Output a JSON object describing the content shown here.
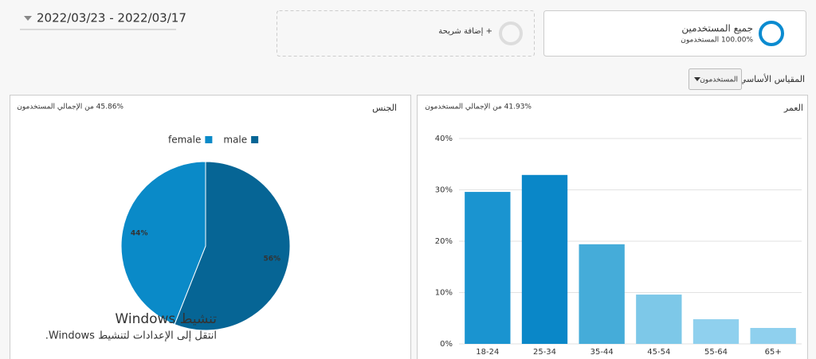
{
  "header": {
    "date_range": "2022/03/23 - 2022/03/17"
  },
  "segments": {
    "add_segment": "+ إضافة شريحة",
    "active": {
      "name": "جميع المستخدمين",
      "detail": "100.00% المستخدمون"
    }
  },
  "metric": {
    "label": "المقياس الأساسي:",
    "selected": "المستخدمون"
  },
  "panels": [
    {
      "title": "الجنس",
      "summary": "45.86% من الإجمالي المستخدمون"
    },
    {
      "title": "العمر",
      "summary": "41.93% من الإجمالي المستخدمون"
    }
  ],
  "watermark": {
    "title": "تنشيط Windows",
    "text": "انتقل إلى الإعدادات لتنشيط Windows."
  },
  "chart_data": [
    {
      "type": "pie",
      "categories": [
        "female",
        "male"
      ],
      "values": [
        44,
        56
      ],
      "value_labels": [
        "44%",
        "56%"
      ],
      "colors": [
        "#0a8ac8",
        "#066595"
      ],
      "legend": "top"
    },
    {
      "type": "bar",
      "categories": [
        "18-24",
        "25-34",
        "35-44",
        "45-54",
        "55-64",
        "65+"
      ],
      "values": [
        29.6,
        32.9,
        19.4,
        9.6,
        4.8,
        3.1
      ],
      "colors": [
        "#1a94d0",
        "#0a87c8",
        "#45acd9",
        "#7dc8e8",
        "#8fd0ee",
        "#8fd0ee"
      ],
      "ylim": [
        0,
        40
      ],
      "yticks": [
        {
          "value": 0,
          "label": "0%"
        },
        {
          "value": 10,
          "label": "10%"
        },
        {
          "value": 20,
          "label": "20%"
        },
        {
          "value": 30,
          "label": "30%"
        },
        {
          "value": 40,
          "label": "40%"
        }
      ],
      "grid": true
    }
  ]
}
